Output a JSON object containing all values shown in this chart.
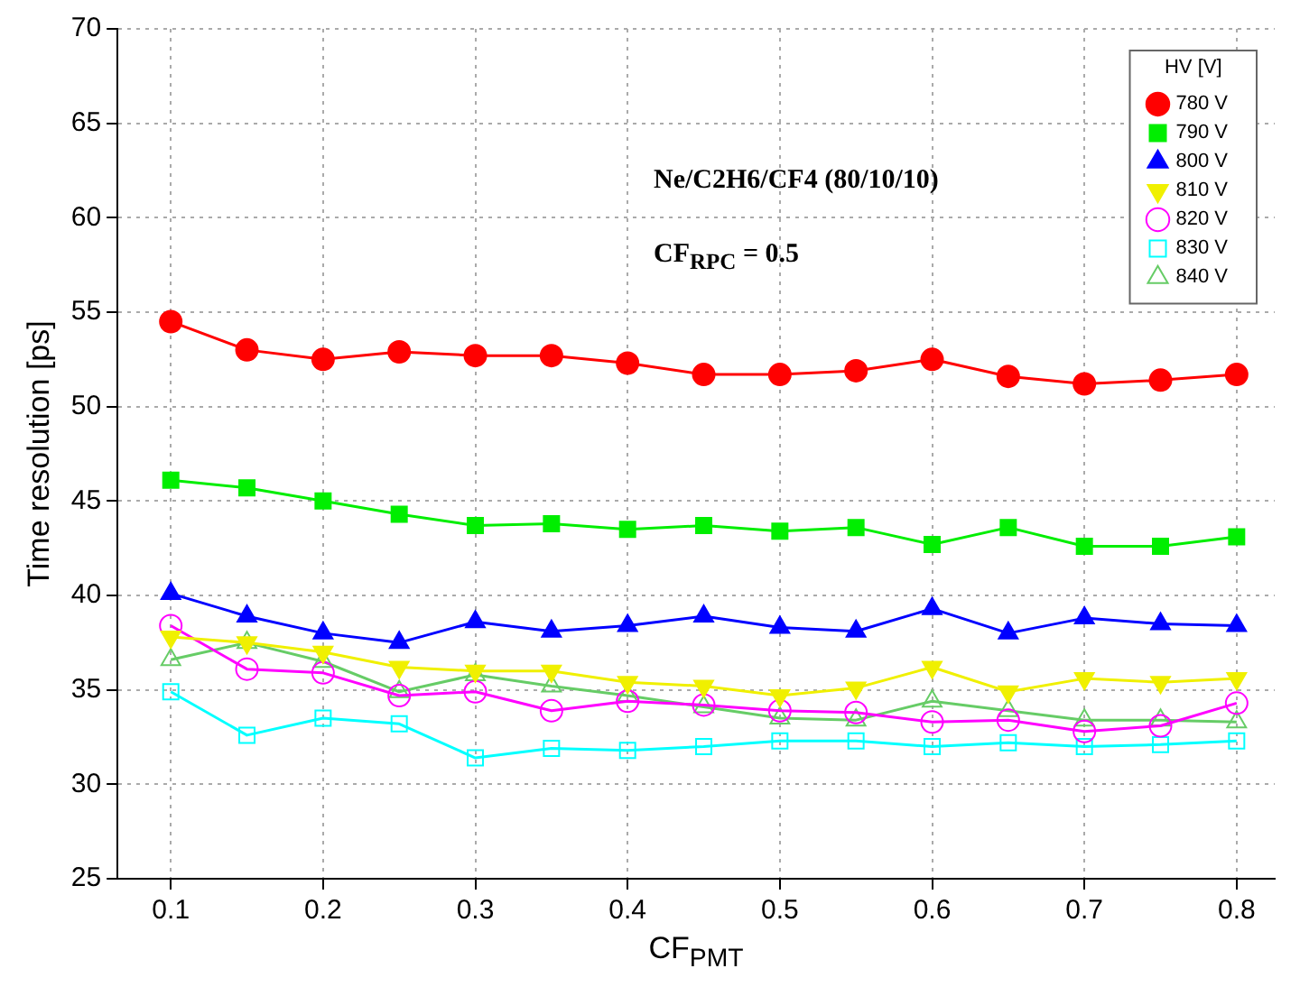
{
  "chart_data": {
    "type": "line",
    "xlabel": "CF$_{PMT}$",
    "ylabel": "Time resolution [ps]",
    "legend_title": "HV [V]",
    "legend": "top right",
    "grid": true,
    "line_style": "solid",
    "x": [
      0.1,
      0.15,
      0.2,
      0.25,
      0.3,
      0.35,
      0.4,
      0.45,
      0.5,
      0.55,
      0.6,
      0.65,
      0.7,
      0.75,
      0.8
    ],
    "xlim": [
      0.065,
      0.825
    ],
    "xticks": [
      0.1,
      0.2,
      0.3,
      0.4,
      0.5,
      0.6,
      0.7,
      0.8
    ],
    "ylim": [
      25,
      70
    ],
    "yticks": [
      25,
      30,
      35,
      40,
      45,
      50,
      55,
      60,
      65,
      70
    ],
    "annotations": [
      "Ne/C2H6/CF4 (80/10/10)",
      "CF$_{RPC}$ = 0.5"
    ],
    "series": [
      {
        "name": "780 V",
        "color": "#ff0000",
        "marker": "circle",
        "values": [
          54.5,
          53,
          52.5,
          52.9,
          52.7,
          52.7,
          52.3,
          51.7,
          51.7,
          51.9,
          52.5,
          51.6,
          51.2,
          51.4,
          51.7
        ]
      },
      {
        "name": "790 V",
        "color": "#00ee00",
        "marker": "square",
        "values": [
          46.1,
          45.7,
          45,
          44.3,
          43.7,
          43.8,
          43.5,
          43.7,
          43.4,
          43.6,
          42.7,
          43.6,
          42.6,
          42.6,
          43.1
        ]
      },
      {
        "name": "800 V",
        "color": "#0000ff",
        "marker": "triangle",
        "values": [
          40.1,
          38.9,
          38,
          37.5,
          38.6,
          38.1,
          38.4,
          38.9,
          38.3,
          38.1,
          39.3,
          38,
          38.8,
          38.5,
          38.4
        ]
      },
      {
        "name": "810 V",
        "color": "#f0f000",
        "marker": "triangle-down",
        "values": [
          37.8,
          37.5,
          37,
          36.2,
          36,
          36,
          35.4,
          35.2,
          34.7,
          35.1,
          36.2,
          34.9,
          35.6,
          35.4,
          35.6
        ]
      },
      {
        "name": "820 V",
        "color": "#ff00ff",
        "marker": "circle-open",
        "values": [
          38.4,
          36.1,
          35.9,
          34.7,
          34.9,
          33.9,
          34.4,
          34.2,
          33.9,
          33.8,
          33.3,
          33.4,
          32.8,
          33.1,
          34.3
        ]
      },
      {
        "name": "830 V",
        "color": "#00ffff",
        "marker": "square-open",
        "values": [
          34.9,
          32.6,
          33.5,
          33.2,
          31.4,
          31.9,
          31.8,
          32.0,
          32.3,
          32.3,
          32.0,
          32.2,
          32.0,
          32.1,
          32.3
        ]
      },
      {
        "name": "840 V",
        "color": "#66cc66",
        "marker": "triangle-open",
        "values": [
          36.6,
          37.5,
          36.5,
          34.9,
          35.8,
          35.2,
          34.7,
          34.1,
          33.5,
          33.4,
          34.4,
          33.9,
          33.4,
          33.4,
          33.3
        ]
      }
    ]
  }
}
